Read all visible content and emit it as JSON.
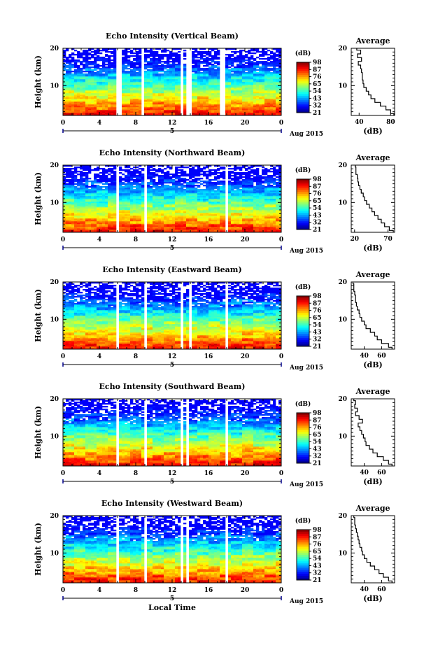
{
  "chart_data": [
    {
      "type": "heatmap",
      "title": "Echo Intensity (Vertical Beam)",
      "ylabel": "Height (km)",
      "x_ticks": [
        "0",
        "4",
        "8",
        "12",
        "16",
        "20",
        "0"
      ],
      "xlim": [
        0,
        24
      ],
      "y_ticks": [
        "10",
        "20"
      ],
      "ylim": [
        2,
        20
      ],
      "date_marker": "5",
      "date_label": "Aug 2015",
      "gaps": [
        [
          6.0,
          6.4
        ],
        [
          8.6,
          9.0
        ],
        [
          12.8,
          13.2
        ],
        [
          13.6,
          14.0
        ],
        [
          17.2,
          17.8
        ]
      ],
      "top_db": 80,
      "bottom_db": 40,
      "noise_pattern": 1,
      "colorbar": {
        "unit": "(dB)",
        "ticks": [
          "21",
          "32",
          "43",
          "54",
          "65",
          "76",
          "87",
          "98"
        ]
      },
      "profile": {
        "title": "Average",
        "xlabel": "(dB)",
        "x_ticks": [
          "40",
          "80"
        ],
        "xlim": [
          30,
          85
        ],
        "y_ticks": [
          "10",
          "20"
        ],
        "heights": [
          2,
          3,
          4,
          5,
          6,
          7,
          8,
          9,
          10,
          11,
          12,
          13,
          14,
          15,
          16,
          17,
          18,
          19,
          20
        ],
        "values": [
          84,
          80,
          74,
          67,
          60,
          55,
          52,
          49,
          46,
          45,
          44,
          44,
          43,
          42,
          39,
          43,
          38,
          42,
          37
        ]
      }
    },
    {
      "type": "heatmap",
      "title": "Echo Intensity (Northward Beam)",
      "ylabel": "Height (km)",
      "x_ticks": [
        "0",
        "4",
        "8",
        "12",
        "16",
        "20",
        "0"
      ],
      "xlim": [
        0,
        24
      ],
      "y_ticks": [
        "10",
        "20"
      ],
      "ylim": [
        2,
        20
      ],
      "date_marker": "5",
      "date_label": "Aug 2015",
      "gaps": [
        [
          5.9,
          6.2
        ],
        [
          8.8,
          9.2
        ],
        [
          17.9,
          18.3
        ]
      ],
      "top_db": 80,
      "bottom_db": 28,
      "noise_pattern": 2,
      "colorbar": {
        "unit": "(dB)",
        "ticks": [
          "21",
          "32",
          "43",
          "54",
          "65",
          "76",
          "87",
          "98"
        ]
      },
      "profile": {
        "title": "Average",
        "xlabel": "(dB)",
        "x_ticks": [
          "20",
          "70"
        ],
        "xlim": [
          15,
          80
        ],
        "y_ticks": [
          "10",
          "20"
        ],
        "heights": [
          2,
          3,
          4,
          5,
          6,
          7,
          8,
          9,
          10,
          11,
          12,
          13,
          14,
          15,
          16,
          17,
          18,
          19,
          20
        ],
        "values": [
          78,
          72,
          65,
          60,
          55,
          50,
          46,
          42,
          38,
          35,
          33,
          30,
          28,
          26,
          25,
          24,
          22,
          22,
          21
        ]
      }
    },
    {
      "type": "heatmap",
      "title": "Echo Intensity (Eastward Beam)",
      "ylabel": "Height (km)",
      "x_ticks": [
        "0",
        "4",
        "8",
        "12",
        "16",
        "20",
        "0"
      ],
      "xlim": [
        0,
        24
      ],
      "y_ticks": [
        "10",
        "20"
      ],
      "ylim": [
        2,
        20
      ],
      "date_marker": "5",
      "date_label": "Aug 2015",
      "gaps": [
        [
          5.9,
          6.2
        ],
        [
          8.8,
          9.2
        ],
        [
          12.9,
          13.3
        ],
        [
          13.7,
          14.0
        ],
        [
          17.9,
          18.3
        ]
      ],
      "top_db": 80,
      "bottom_db": 28,
      "noise_pattern": 3,
      "colorbar": {
        "unit": "(dB)",
        "ticks": [
          "21",
          "32",
          "43",
          "54",
          "65",
          "76",
          "87",
          "98"
        ]
      },
      "profile": {
        "title": "Average",
        "xlabel": "(dB)",
        "x_ticks": [
          "40",
          "60"
        ],
        "xlim": [
          25,
          75
        ],
        "y_ticks": [
          "10",
          "20"
        ],
        "heights": [
          2,
          3,
          4,
          5,
          6,
          7,
          8,
          9,
          10,
          11,
          12,
          13,
          14,
          15,
          16,
          17,
          18,
          19,
          20
        ],
        "values": [
          72,
          68,
          60,
          55,
          52,
          47,
          42,
          40,
          37,
          35,
          34,
          32,
          31,
          30,
          30,
          29,
          28,
          28,
          27
        ]
      }
    },
    {
      "type": "heatmap",
      "title": "Echo Intensity (Southward Beam)",
      "ylabel": "Height (km)",
      "x_ticks": [
        "0",
        "4",
        "8",
        "12",
        "16",
        "20",
        "0"
      ],
      "xlim": [
        0,
        24
      ],
      "y_ticks": [
        "10",
        "20"
      ],
      "ylim": [
        2,
        20
      ],
      "date_marker": "5",
      "date_label": "Aug 2015",
      "gaps": [
        [
          5.9,
          6.2
        ],
        [
          8.8,
          9.2
        ],
        [
          12.8,
          13.1
        ],
        [
          13.6,
          13.9
        ],
        [
          17.9,
          18.3
        ]
      ],
      "top_db": 80,
      "bottom_db": 28,
      "noise_pattern": 4,
      "colorbar": {
        "unit": "(dB)",
        "ticks": [
          "21",
          "32",
          "43",
          "54",
          "65",
          "76",
          "87",
          "98"
        ]
      },
      "profile": {
        "title": "Average",
        "xlabel": "(dB)",
        "x_ticks": [
          "40",
          "60"
        ],
        "xlim": [
          25,
          75
        ],
        "y_ticks": [
          "10",
          "20"
        ],
        "heights": [
          2,
          3,
          4,
          5,
          6,
          7,
          8,
          9,
          10,
          11,
          12,
          13,
          14,
          15,
          16,
          17,
          18,
          19,
          20
        ],
        "values": [
          72,
          68,
          62,
          55,
          50,
          46,
          42,
          41,
          39,
          37,
          35,
          33,
          38,
          34,
          30,
          32,
          29,
          30,
          28
        ]
      }
    },
    {
      "type": "heatmap",
      "title": "Echo Intensity (Westward Beam)",
      "ylabel": "Height (km)",
      "xlabel": "Local Time",
      "x_ticks": [
        "0",
        "4",
        "8",
        "12",
        "16",
        "20",
        "0"
      ],
      "xlim": [
        0,
        24
      ],
      "y_ticks": [
        "10",
        "20"
      ],
      "ylim": [
        2,
        20
      ],
      "date_marker": "5",
      "date_label": "Aug 2015",
      "gaps": [
        [
          5.9,
          6.2
        ],
        [
          8.8,
          9.2
        ],
        [
          12.9,
          13.2
        ],
        [
          13.6,
          13.9
        ],
        [
          17.9,
          18.3
        ]
      ],
      "top_db": 80,
      "bottom_db": 28,
      "noise_pattern": 5,
      "colorbar": {
        "unit": "(dB)",
        "ticks": [
          "21",
          "32",
          "43",
          "54",
          "65",
          "76",
          "87",
          "98"
        ]
      },
      "profile": {
        "title": "Average",
        "xlabel": "(dB)",
        "x_ticks": [
          "40",
          "60"
        ],
        "xlim": [
          25,
          75
        ],
        "y_ticks": [
          "10",
          "20"
        ],
        "heights": [
          2,
          3,
          4,
          5,
          6,
          7,
          8,
          9,
          10,
          11,
          12,
          13,
          14,
          15,
          16,
          17,
          18,
          19,
          20
        ],
        "values": [
          72,
          68,
          62,
          57,
          52,
          47,
          43,
          40,
          38,
          37,
          35,
          34,
          33,
          32,
          31,
          30,
          29,
          29,
          28
        ]
      }
    }
  ]
}
